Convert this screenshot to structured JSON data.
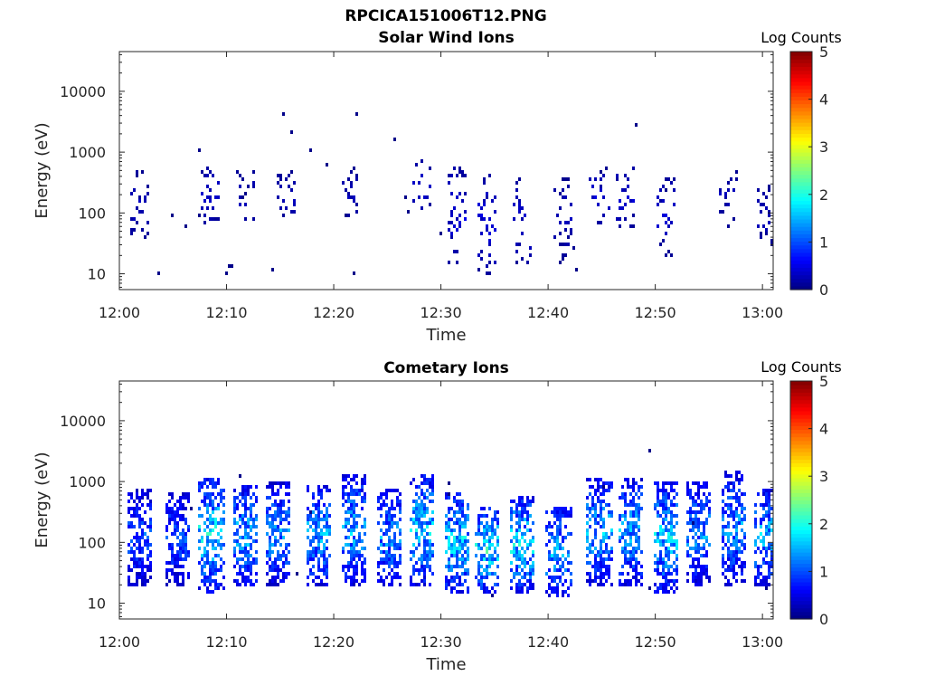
{
  "figure": {
    "title": "RPCICA151006T12.PNG"
  },
  "chart_data": [
    {
      "type": "heatmap",
      "title": "Solar Wind Ions",
      "xlabel": "Time",
      "ylabel": "Energy (eV)",
      "yscale": "log",
      "xlim": [
        "12:00",
        "13:01"
      ],
      "ylim": [
        5.5,
        45000
      ],
      "xticks": [
        "12:00",
        "12:10",
        "12:20",
        "12:30",
        "12:40",
        "12:50",
        "13:00"
      ],
      "yticks": [
        "10",
        "100",
        "1000",
        "10000"
      ],
      "colorbar": {
        "label": "Log Counts",
        "range": [
          0,
          5
        ],
        "ticks": [
          "0",
          "1",
          "2",
          "3",
          "4",
          "5"
        ],
        "colormap": "jet"
      },
      "grid": false,
      "bursts": [
        {
          "time_min": 1.8,
          "e_low": 40,
          "e_high": 500,
          "mean_log": 0.2
        },
        {
          "time_min": 8.5,
          "e_low": 60,
          "e_high": 600,
          "mean_log": 0.25
        },
        {
          "time_min": 11.8,
          "e_low": 70,
          "e_high": 500,
          "mean_log": 0.2
        },
        {
          "time_min": 15.5,
          "e_low": 80,
          "e_high": 500,
          "mean_log": 0.2
        },
        {
          "time_min": 21.5,
          "e_low": 70,
          "e_high": 600,
          "mean_log": 0.2
        },
        {
          "time_min": 28.3,
          "e_low": 80,
          "e_high": 800,
          "mean_log": 0.25
        },
        {
          "time_min": 31.5,
          "e_low": 15,
          "e_high": 600,
          "mean_log": 0.3
        },
        {
          "time_min": 34.2,
          "e_low": 10,
          "e_high": 500,
          "mean_log": 0.3
        },
        {
          "time_min": 37.5,
          "e_low": 12,
          "e_high": 400,
          "mean_log": 0.25
        },
        {
          "time_min": 41.5,
          "e_low": 15,
          "e_high": 400,
          "mean_log": 0.2
        },
        {
          "time_min": 44.8,
          "e_low": 60,
          "e_high": 600,
          "mean_log": 0.25
        },
        {
          "time_min": 47.2,
          "e_low": 60,
          "e_high": 600,
          "mean_log": 0.25
        },
        {
          "time_min": 51.0,
          "e_low": 20,
          "e_high": 400,
          "mean_log": 0.25
        },
        {
          "time_min": 56.8,
          "e_low": 60,
          "e_high": 500,
          "mean_log": 0.2
        },
        {
          "time_min": 60.5,
          "e_low": 30,
          "e_high": 300,
          "mean_log": 0.2
        }
      ]
    },
    {
      "type": "heatmap",
      "title": "Cometary Ions",
      "xlabel": "Time",
      "ylabel": "Energy (eV)",
      "yscale": "log",
      "xlim": [
        "12:00",
        "13:01"
      ],
      "ylim": [
        5.5,
        45000
      ],
      "xticks": [
        "12:00",
        "12:10",
        "12:20",
        "12:30",
        "12:40",
        "12:50",
        "13:00"
      ],
      "yticks": [
        "10",
        "100",
        "1000",
        "10000"
      ],
      "colorbar": {
        "label": "Log Counts",
        "range": [
          0,
          5
        ],
        "ticks": [
          "0",
          "1",
          "2",
          "3",
          "4",
          "5"
        ],
        "colormap": "jet"
      },
      "grid": false,
      "bursts": [
        {
          "time_min": 1.9,
          "e_low": 20,
          "e_high": 800,
          "mean_log": 0.7
        },
        {
          "time_min": 5.4,
          "e_low": 20,
          "e_high": 700,
          "mean_log": 0.7
        },
        {
          "time_min": 8.6,
          "e_low": 15,
          "e_high": 1200,
          "mean_log": 1.2
        },
        {
          "time_min": 11.8,
          "e_low": 20,
          "e_high": 900,
          "mean_log": 1.0
        },
        {
          "time_min": 14.8,
          "e_low": 20,
          "e_high": 1000,
          "mean_log": 0.9
        },
        {
          "time_min": 18.7,
          "e_low": 20,
          "e_high": 900,
          "mean_log": 1.0
        },
        {
          "time_min": 21.8,
          "e_low": 20,
          "e_high": 1300,
          "mean_log": 1.0
        },
        {
          "time_min": 25.3,
          "e_low": 20,
          "e_high": 800,
          "mean_log": 0.9
        },
        {
          "time_min": 28.3,
          "e_low": 20,
          "e_high": 1400,
          "mean_log": 1.1
        },
        {
          "time_min": 31.6,
          "e_low": 15,
          "e_high": 700,
          "mean_log": 1.1
        },
        {
          "time_min": 34.3,
          "e_low": 15,
          "e_high": 400,
          "mean_log": 1.3
        },
        {
          "time_min": 37.6,
          "e_low": 15,
          "e_high": 600,
          "mean_log": 1.2
        },
        {
          "time_min": 41.0,
          "e_low": 12,
          "e_high": 400,
          "mean_log": 1.0
        },
        {
          "time_min": 44.8,
          "e_low": 20,
          "e_high": 1200,
          "mean_log": 1.0
        },
        {
          "time_min": 47.8,
          "e_low": 20,
          "e_high": 1200,
          "mean_log": 1.0
        },
        {
          "time_min": 51.0,
          "e_low": 15,
          "e_high": 1000,
          "mean_log": 1.1
        },
        {
          "time_min": 54.0,
          "e_low": 20,
          "e_high": 1000,
          "mean_log": 0.9
        },
        {
          "time_min": 57.3,
          "e_low": 20,
          "e_high": 1500,
          "mean_log": 0.9
        },
        {
          "time_min": 60.3,
          "e_low": 20,
          "e_high": 800,
          "mean_log": 1.0
        }
      ]
    }
  ]
}
